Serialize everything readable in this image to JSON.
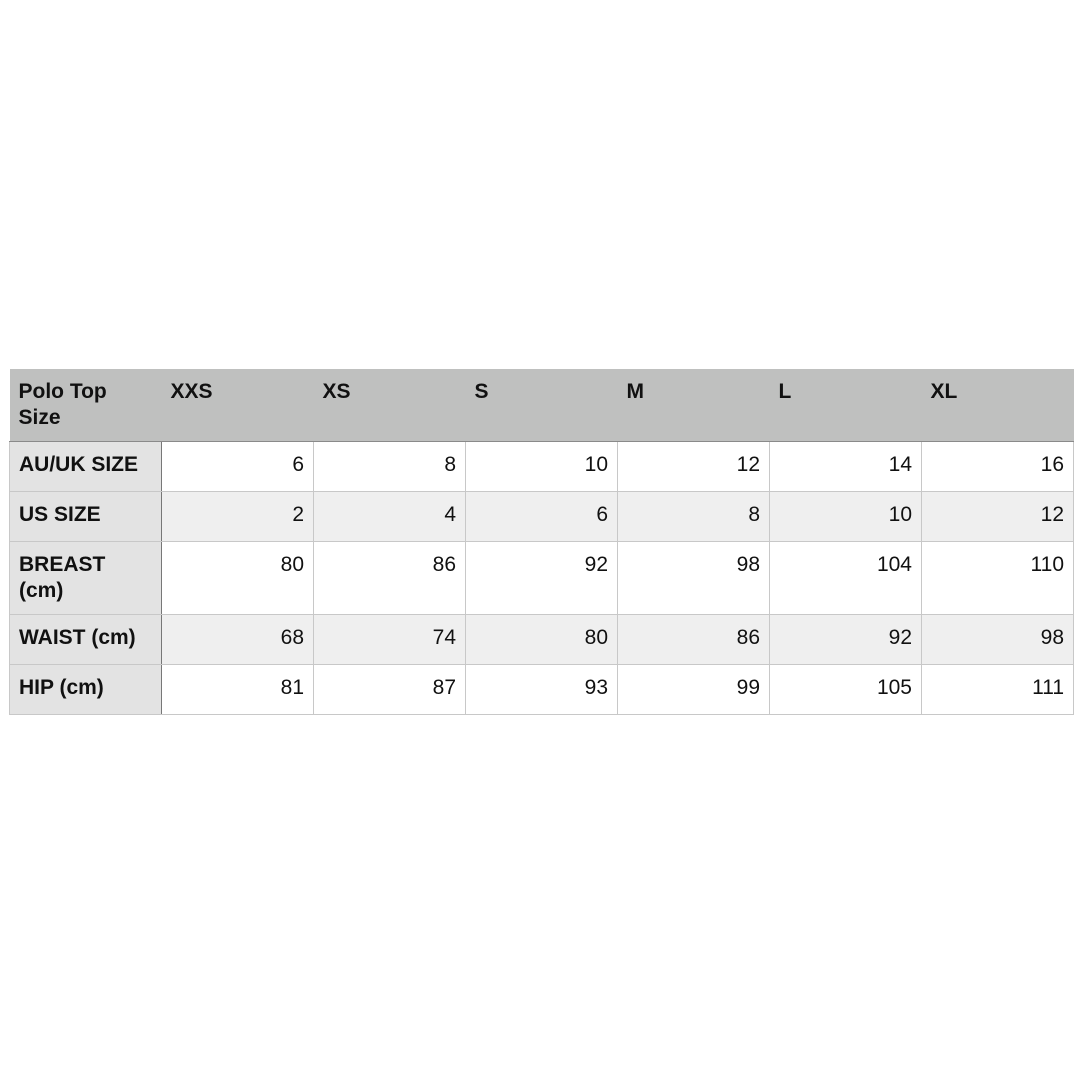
{
  "table": {
    "corner": "Polo Top Size",
    "columns": [
      "XXS",
      "XS",
      "S",
      "M",
      "L",
      "XL"
    ],
    "rows": [
      {
        "label": "AU/UK SIZE",
        "values": [
          "6",
          "8",
          "10",
          "12",
          "14",
          "16"
        ]
      },
      {
        "label": "US SIZE",
        "values": [
          "2",
          "4",
          "6",
          "8",
          "10",
          "12"
        ]
      },
      {
        "label": "BREAST (cm)",
        "values": [
          "80",
          "86",
          "92",
          "98",
          "104",
          "110"
        ]
      },
      {
        "label": "WAIST (cm)",
        "values": [
          "68",
          "74",
          "80",
          "86",
          "92",
          "98"
        ]
      },
      {
        "label": "HIP (cm)",
        "values": [
          "81",
          "87",
          "93",
          "99",
          "105",
          "111"
        ]
      }
    ]
  },
  "colors": {
    "header_bg": "#bfc0bf",
    "row_header_bg": "#e3e3e3",
    "alt_row_bg": "#efefef"
  }
}
